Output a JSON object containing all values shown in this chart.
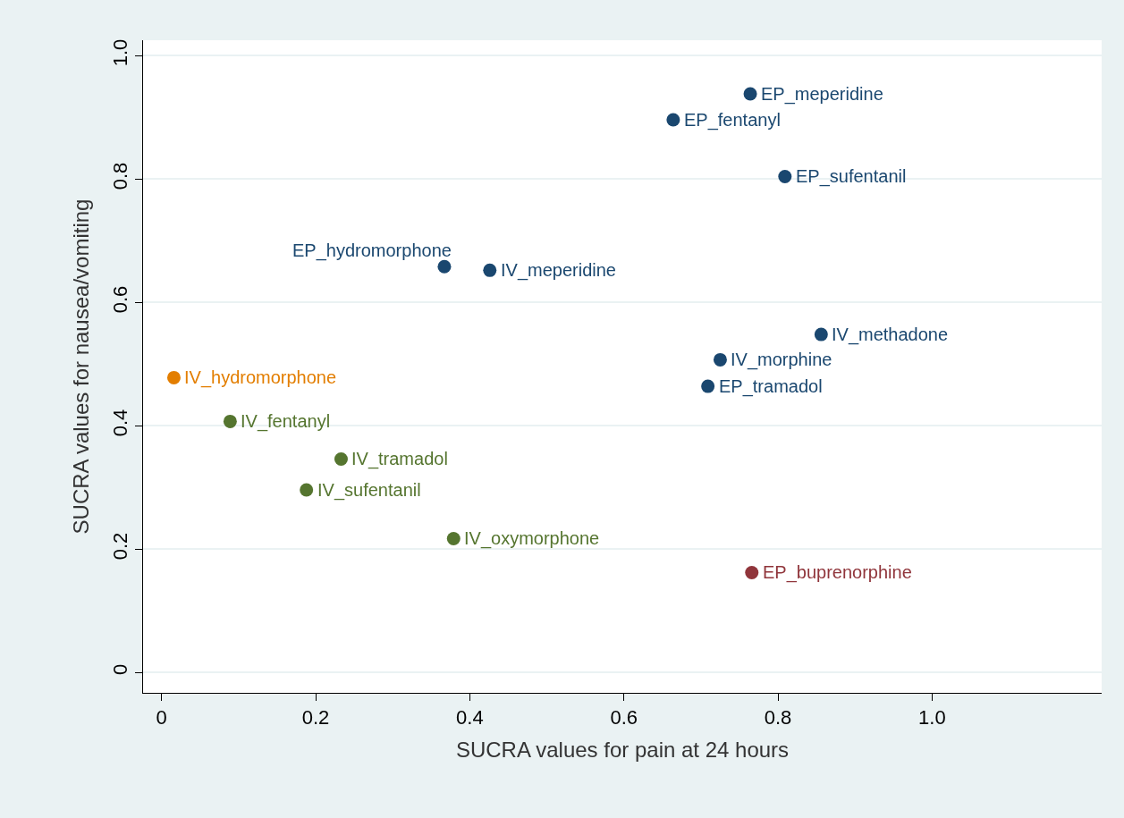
{
  "chart_data": {
    "type": "scatter",
    "xlabel": "SUCRA values for pain at 24 hours",
    "ylabel": "SUCRA values for nausea/vomiting",
    "series": [
      {
        "color": "#1a476f",
        "x": [
          0.764,
          0.664,
          0.809,
          0.367,
          0.426,
          0.856,
          0.725,
          0.709
        ],
        "values": [
          0.938,
          0.896,
          0.804,
          0.658,
          0.652,
          0.548,
          0.507,
          0.464
        ]
      },
      {
        "color": "#e37e00",
        "x": [
          0.016
        ],
        "values": [
          0.478
        ]
      },
      {
        "color": "#55752f",
        "x": [
          0.089,
          0.233,
          0.188,
          0.379
        ],
        "values": [
          0.407,
          0.346,
          0.296,
          0.217
        ]
      },
      {
        "color": "#90353b",
        "x": [
          0.766
        ],
        "values": [
          0.162
        ]
      }
    ],
    "annotations": [
      {
        "text": "EP_meperidine",
        "x": 0.764,
        "y": 0.938
      },
      {
        "text": "EP_fentanyl",
        "x": 0.664,
        "y": 0.896
      },
      {
        "text": "EP_sufentanil",
        "x": 0.809,
        "y": 0.804
      },
      {
        "text": "EP_hydromorphone",
        "x": 0.367,
        "y": 0.658
      },
      {
        "text": "IV_meperidine",
        "x": 0.426,
        "y": 0.652
      },
      {
        "text": "IV_methadone",
        "x": 0.856,
        "y": 0.548
      },
      {
        "text": "IV_morphine",
        "x": 0.725,
        "y": 0.507
      },
      {
        "text": "EP_tramadol",
        "x": 0.709,
        "y": 0.464
      },
      {
        "text": "IV_hydromorphone",
        "x": 0.016,
        "y": 0.478
      },
      {
        "text": "IV_fentanyl",
        "x": 0.089,
        "y": 0.407
      },
      {
        "text": "IV_tramadol",
        "x": 0.233,
        "y": 0.346
      },
      {
        "text": "IV_sufentanil",
        "x": 0.188,
        "y": 0.296
      },
      {
        "text": "IV_oxymorphone",
        "x": 0.379,
        "y": 0.217
      },
      {
        "text": "EP_buprenorphine",
        "x": 0.766,
        "y": 0.162
      }
    ],
    "xlim": [
      -0.024,
      1.22
    ],
    "ylim": [
      -0.033,
      1.025
    ],
    "xticks": [
      0,
      0.2,
      0.4,
      0.6,
      0.8,
      {
        "value": 1,
        "label": "1.0"
      }
    ],
    "yticks": [
      0,
      0.2,
      0.4,
      0.6,
      0.8,
      {
        "value": 1,
        "label": "1.0"
      }
    ],
    "grid": "y",
    "marker": "circle"
  }
}
